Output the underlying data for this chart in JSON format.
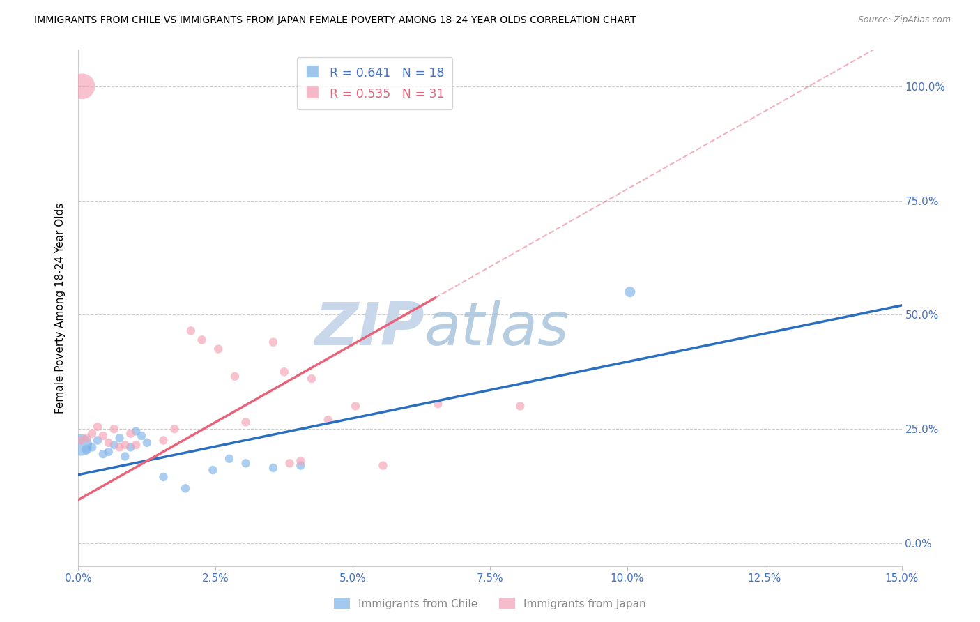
{
  "title": "IMMIGRANTS FROM CHILE VS IMMIGRANTS FROM JAPAN FEMALE POVERTY AMONG 18-24 YEAR OLDS CORRELATION CHART",
  "source": "Source: ZipAtlas.com",
  "xlabel_vals": [
    0.0,
    2.5,
    5.0,
    7.5,
    10.0,
    12.5,
    15.0
  ],
  "ylabel": "Female Poverty Among 18-24 Year Olds",
  "ylabel_vals": [
    0.0,
    25.0,
    50.0,
    75.0,
    100.0
  ],
  "xlim": [
    0.0,
    15.0
  ],
  "ylim": [
    -5.0,
    108.0
  ],
  "chile_color": "#7EB3E8",
  "japan_color": "#F4A0B5",
  "chile_line_color": "#2A6FBF",
  "japan_line_color": "#E8627A",
  "watermark_color": "#c8d8ea",
  "chile_scatter_x": [
    0.05,
    0.15,
    0.25,
    0.35,
    0.45,
    0.55,
    0.65,
    0.75,
    0.85,
    0.95,
    1.05,
    1.15,
    1.25,
    1.55,
    1.95,
    2.45,
    2.75,
    3.05,
    3.55,
    4.05,
    10.05
  ],
  "chile_scatter_y": [
    21.5,
    20.5,
    21.0,
    22.5,
    19.5,
    20.0,
    21.5,
    23.0,
    19.0,
    21.0,
    24.5,
    23.5,
    22.0,
    14.5,
    12.0,
    16.0,
    18.5,
    17.5,
    16.5,
    17.0,
    55.0
  ],
  "chile_sizes": [
    500,
    100,
    80,
    80,
    80,
    80,
    80,
    80,
    80,
    80,
    80,
    80,
    80,
    80,
    80,
    80,
    80,
    80,
    80,
    80,
    120
  ],
  "japan_scatter_x": [
    0.05,
    0.15,
    0.25,
    0.35,
    0.45,
    0.55,
    0.65,
    0.75,
    0.85,
    0.95,
    1.05,
    1.55,
    1.75,
    2.05,
    2.25,
    2.55,
    2.85,
    3.05,
    3.55,
    3.75,
    3.85,
    4.05,
    4.25,
    4.55,
    5.05,
    5.55,
    6.55,
    8.05,
    0.07
  ],
  "japan_scatter_y": [
    22.5,
    23.0,
    24.0,
    25.5,
    23.5,
    22.0,
    25.0,
    21.0,
    21.5,
    24.0,
    21.5,
    22.5,
    25.0,
    46.5,
    44.5,
    42.5,
    36.5,
    26.5,
    44.0,
    37.5,
    17.5,
    18.0,
    36.0,
    27.0,
    30.0,
    17.0,
    30.5,
    30.0,
    100.0
  ],
  "japan_sizes": [
    80,
    80,
    80,
    80,
    80,
    80,
    80,
    80,
    80,
    80,
    80,
    80,
    80,
    80,
    80,
    80,
    80,
    80,
    80,
    80,
    80,
    80,
    80,
    80,
    80,
    80,
    80,
    80,
    700
  ],
  "chile_slope": 2.47,
  "chile_intercept": 15.0,
  "japan_slope": 6.8,
  "japan_intercept": 9.5,
  "japan_solid_end": 6.5
}
